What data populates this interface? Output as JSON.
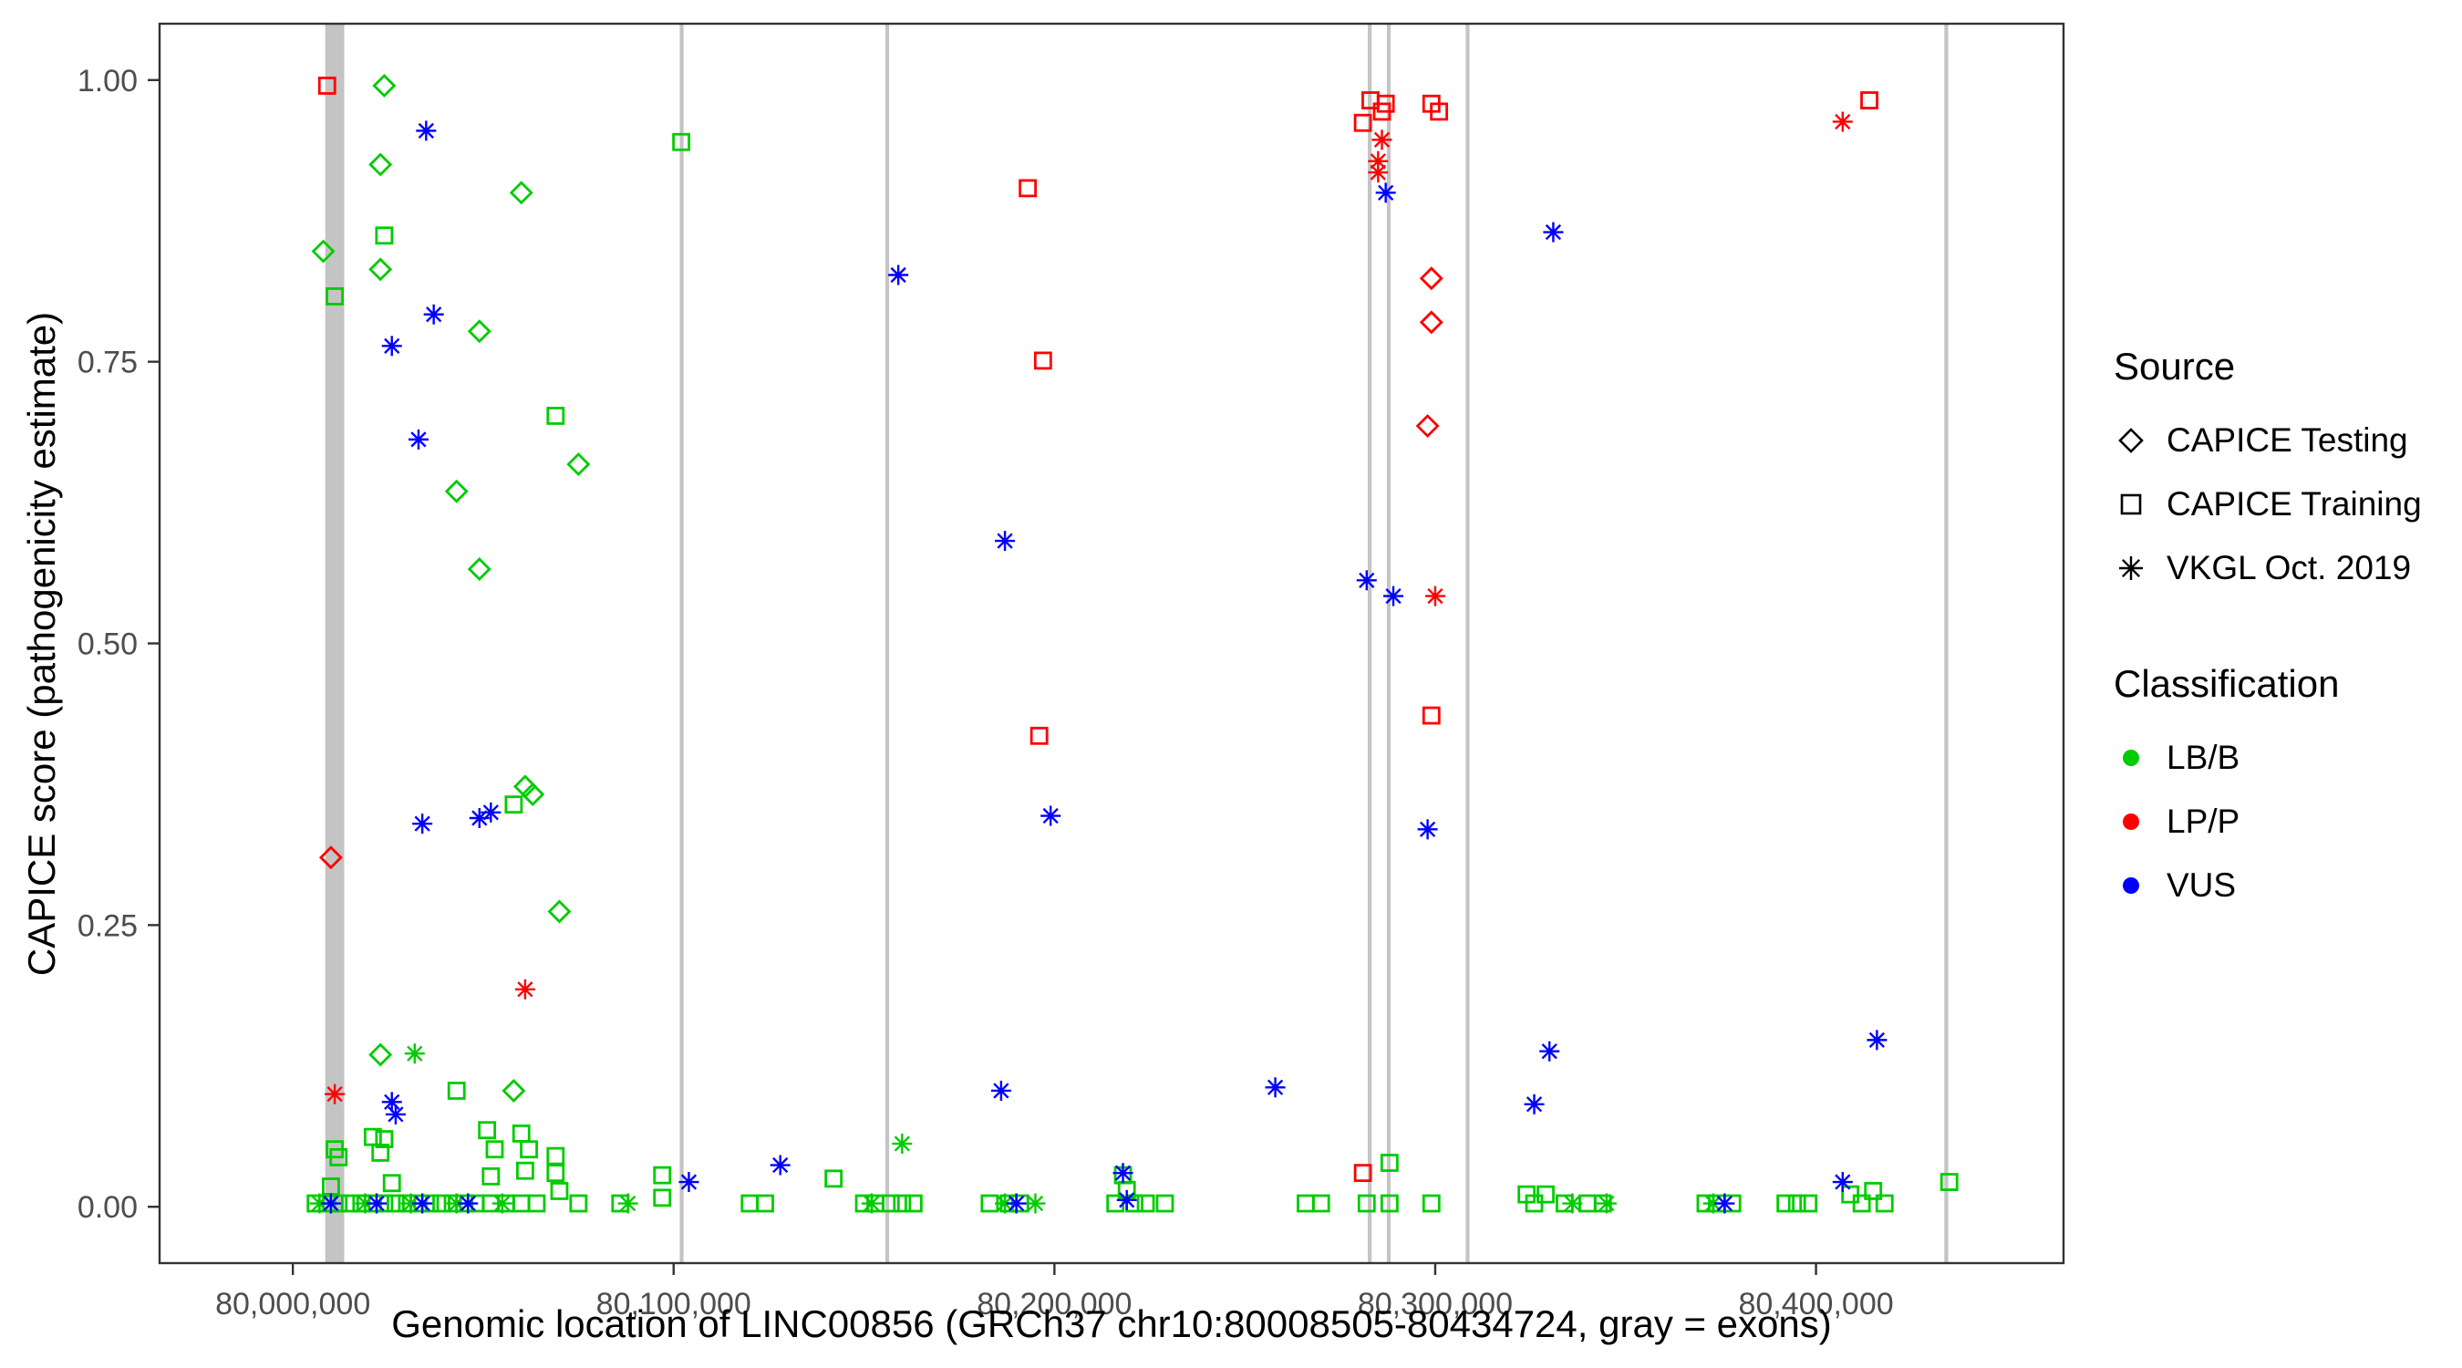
{
  "chart_data": {
    "type": "scatter",
    "title": "",
    "xlabel": "Genomic location of LINC00856 (GRCh37 chr10:80008505-80434724, gray = exons)",
    "ylabel": "CAPICE score (pathogenicity estimate)",
    "xlim": [
      79965000,
      80465000
    ],
    "ylim": [
      -0.05,
      1.05
    ],
    "x_ticks": [
      80000000,
      80100000,
      80200000,
      80300000,
      80400000
    ],
    "x_tick_labels": [
      "80,000,000",
      "80,100,000",
      "80,200,000",
      "80,300,000",
      "80,400,000"
    ],
    "y_ticks": [
      0,
      0.25,
      0.5,
      0.75,
      1
    ],
    "y_tick_labels": [
      "0.00",
      "0.25",
      "0.50",
      "0.75",
      "1.00"
    ],
    "grid": false,
    "exon_color": "#C4C4C4",
    "exons": [
      [
        80008505,
        80013500
      ],
      [
        80101600,
        80102600
      ],
      [
        80155600,
        80156600
      ],
      [
        80282300,
        80283300
      ],
      [
        80287300,
        80288300
      ],
      [
        80308000,
        80309000
      ],
      [
        80433700,
        80434724
      ]
    ],
    "legend": {
      "source": {
        "title": "Source",
        "items": [
          {
            "label": "CAPICE Testing",
            "shape": "diamond"
          },
          {
            "label": "CAPICE Training",
            "shape": "square"
          },
          {
            "label": "VKGL Oct. 2019",
            "shape": "asterisk"
          }
        ]
      },
      "classification": {
        "title": "Classification",
        "items": [
          {
            "label": "LB/B",
            "color": "#00CC00"
          },
          {
            "label": "LP/P",
            "color": "#FF0000"
          },
          {
            "label": "VUS",
            "color": "#0000FF"
          }
        ]
      }
    },
    "series": [
      {
        "name": "CAPICE Testing / LB-B",
        "shape": "diamond",
        "color": "#00CC00",
        "points": [
          [
            80024000,
            0.995
          ],
          [
            80023000,
            0.925
          ],
          [
            80060000,
            0.9
          ],
          [
            80008000,
            0.848
          ],
          [
            80023000,
            0.832
          ],
          [
            80049000,
            0.777
          ],
          [
            80075000,
            0.659
          ],
          [
            80043000,
            0.635
          ],
          [
            80049000,
            0.566
          ],
          [
            80061000,
            0.373
          ],
          [
            80063000,
            0.366
          ],
          [
            80070000,
            0.262
          ],
          [
            80023000,
            0.135
          ],
          [
            80058000,
            0.103
          ]
        ]
      },
      {
        "name": "CAPICE Testing / LP-P",
        "shape": "diamond",
        "color": "#FF0000",
        "points": [
          [
            80010000,
            0.31
          ],
          [
            80299000,
            0.824
          ],
          [
            80299000,
            0.785
          ],
          [
            80298000,
            0.693
          ]
        ]
      },
      {
        "name": "CAPICE Training / LB-B",
        "shape": "square",
        "color": "#00CC00",
        "points": [
          [
            80024000,
            0.862
          ],
          [
            80011000,
            0.808
          ],
          [
            80069000,
            0.702
          ],
          [
            80102000,
            0.945
          ],
          [
            80058000,
            0.357
          ],
          [
            80043000,
            0.103
          ],
          [
            80021000,
            0.062
          ],
          [
            80024000,
            0.06
          ],
          [
            80051000,
            0.068
          ],
          [
            80060000,
            0.065
          ],
          [
            80011000,
            0.051
          ],
          [
            80023000,
            0.048
          ],
          [
            80053000,
            0.051
          ],
          [
            80062000,
            0.051
          ],
          [
            80069000,
            0.045
          ],
          [
            80012000,
            0.044
          ],
          [
            80061000,
            0.032
          ],
          [
            80069000,
            0.03
          ],
          [
            80052000,
            0.027
          ],
          [
            80010000,
            0.018
          ],
          [
            80026000,
            0.021
          ],
          [
            80070000,
            0.014
          ],
          [
            80006000,
            0.003
          ],
          [
            80009000,
            0.003
          ],
          [
            80012000,
            0.003
          ],
          [
            80015000,
            0.003
          ],
          [
            80018000,
            0.003
          ],
          [
            80021000,
            0.003
          ],
          [
            80024000,
            0.003
          ],
          [
            80027000,
            0.003
          ],
          [
            80030000,
            0.003
          ],
          [
            80033000,
            0.003
          ],
          [
            80036000,
            0.003
          ],
          [
            80039000,
            0.003
          ],
          [
            80042000,
            0.003
          ],
          [
            80045000,
            0.003
          ],
          [
            80048000,
            0.003
          ],
          [
            80052000,
            0.003
          ],
          [
            80056000,
            0.003
          ],
          [
            80060000,
            0.003
          ],
          [
            80064000,
            0.003
          ],
          [
            80075000,
            0.003
          ],
          [
            80086000,
            0.003
          ],
          [
            80097000,
            0.028
          ],
          [
            80097000,
            0.008
          ],
          [
            80120000,
            0.003
          ],
          [
            80124000,
            0.003
          ],
          [
            80142000,
            0.025
          ],
          [
            80150000,
            0.003
          ],
          [
            80153000,
            0.003
          ],
          [
            80157000,
            0.003
          ],
          [
            80160000,
            0.003
          ],
          [
            80163000,
            0.003
          ],
          [
            80183000,
            0.003
          ],
          [
            80188000,
            0.003
          ],
          [
            80191000,
            0.003
          ],
          [
            80216000,
            0.003
          ],
          [
            80218000,
            0.028
          ],
          [
            80219000,
            0.015
          ],
          [
            80221000,
            0.003
          ],
          [
            80224000,
            0.003
          ],
          [
            80229000,
            0.003
          ],
          [
            80266000,
            0.003
          ],
          [
            80270000,
            0.003
          ],
          [
            80282000,
            0.003
          ],
          [
            80288000,
            0.039
          ],
          [
            80288000,
            0.003
          ],
          [
            80299000,
            0.003
          ],
          [
            80324000,
            0.011
          ],
          [
            80326000,
            0.003
          ],
          [
            80329000,
            0.011
          ],
          [
            80334000,
            0.003
          ],
          [
            80340000,
            0.003
          ],
          [
            80344000,
            0.003
          ],
          [
            80371000,
            0.003
          ],
          [
            80374000,
            0.003
          ],
          [
            80378000,
            0.003
          ],
          [
            80392000,
            0.003
          ],
          [
            80395000,
            0.003
          ],
          [
            80398000,
            0.003
          ],
          [
            80409000,
            0.011
          ],
          [
            80412000,
            0.003
          ],
          [
            80415000,
            0.014
          ],
          [
            80418000,
            0.003
          ],
          [
            80435000,
            0.022
          ]
        ]
      },
      {
        "name": "CAPICE Training / LP-P",
        "shape": "square",
        "color": "#FF0000",
        "points": [
          [
            80009000,
            0.995
          ],
          [
            80193000,
            0.904
          ],
          [
            80197000,
            0.751
          ],
          [
            80196000,
            0.418
          ],
          [
            80281000,
            0.962
          ],
          [
            80283000,
            0.982
          ],
          [
            80286000,
            0.972
          ],
          [
            80287000,
            0.979
          ],
          [
            80299000,
            0.979
          ],
          [
            80301000,
            0.972
          ],
          [
            80299000,
            0.436
          ],
          [
            80281000,
            0.03
          ],
          [
            80414000,
            0.982
          ]
        ]
      },
      {
        "name": "VKGL Oct. 2019 / LB-B",
        "shape": "asterisk",
        "color": "#00CC00",
        "points": [
          [
            80032000,
            0.136
          ],
          [
            80160000,
            0.056
          ],
          [
            80007000,
            0.003
          ],
          [
            80019000,
            0.003
          ],
          [
            80031000,
            0.003
          ],
          [
            80043000,
            0.003
          ],
          [
            80055000,
            0.003
          ],
          [
            80088000,
            0.003
          ],
          [
            80152000,
            0.003
          ],
          [
            80187000,
            0.003
          ],
          [
            80195000,
            0.003
          ],
          [
            80336000,
            0.003
          ],
          [
            80345000,
            0.003
          ],
          [
            80373000,
            0.003
          ]
        ]
      },
      {
        "name": "VKGL Oct. 2019 / LP-P",
        "shape": "asterisk",
        "color": "#FF0000",
        "points": [
          [
            80011000,
            0.1
          ],
          [
            80061000,
            0.193
          ],
          [
            80286000,
            0.947
          ],
          [
            80285000,
            0.928
          ],
          [
            80285000,
            0.918
          ],
          [
            80300000,
            0.542
          ],
          [
            80407000,
            0.963
          ]
        ]
      },
      {
        "name": "VKGL Oct. 2019 / VUS",
        "shape": "asterisk",
        "color": "#0000FF",
        "points": [
          [
            80035000,
            0.955
          ],
          [
            80037000,
            0.792
          ],
          [
            80026000,
            0.764
          ],
          [
            80033000,
            0.681
          ],
          [
            80034000,
            0.34
          ],
          [
            80049000,
            0.345
          ],
          [
            80052000,
            0.35
          ],
          [
            80026000,
            0.093
          ],
          [
            80027000,
            0.082
          ],
          [
            80159000,
            0.827
          ],
          [
            80187000,
            0.591
          ],
          [
            80199000,
            0.347
          ],
          [
            80186000,
            0.103
          ],
          [
            80104000,
            0.022
          ],
          [
            80128000,
            0.037
          ],
          [
            80258000,
            0.106
          ],
          [
            80287000,
            0.9
          ],
          [
            80282000,
            0.556
          ],
          [
            80289000,
            0.542
          ],
          [
            80298000,
            0.335
          ],
          [
            80331000,
            0.865
          ],
          [
            80330000,
            0.138
          ],
          [
            80326000,
            0.091
          ],
          [
            80416000,
            0.148
          ],
          [
            80407000,
            0.022
          ],
          [
            80010000,
            0.003
          ],
          [
            80022000,
            0.003
          ],
          [
            80034000,
            0.003
          ],
          [
            80046000,
            0.003
          ],
          [
            80190000,
            0.003
          ],
          [
            80218000,
            0.03
          ],
          [
            80219000,
            0.006
          ],
          [
            80376000,
            0.003
          ]
        ]
      }
    ]
  }
}
